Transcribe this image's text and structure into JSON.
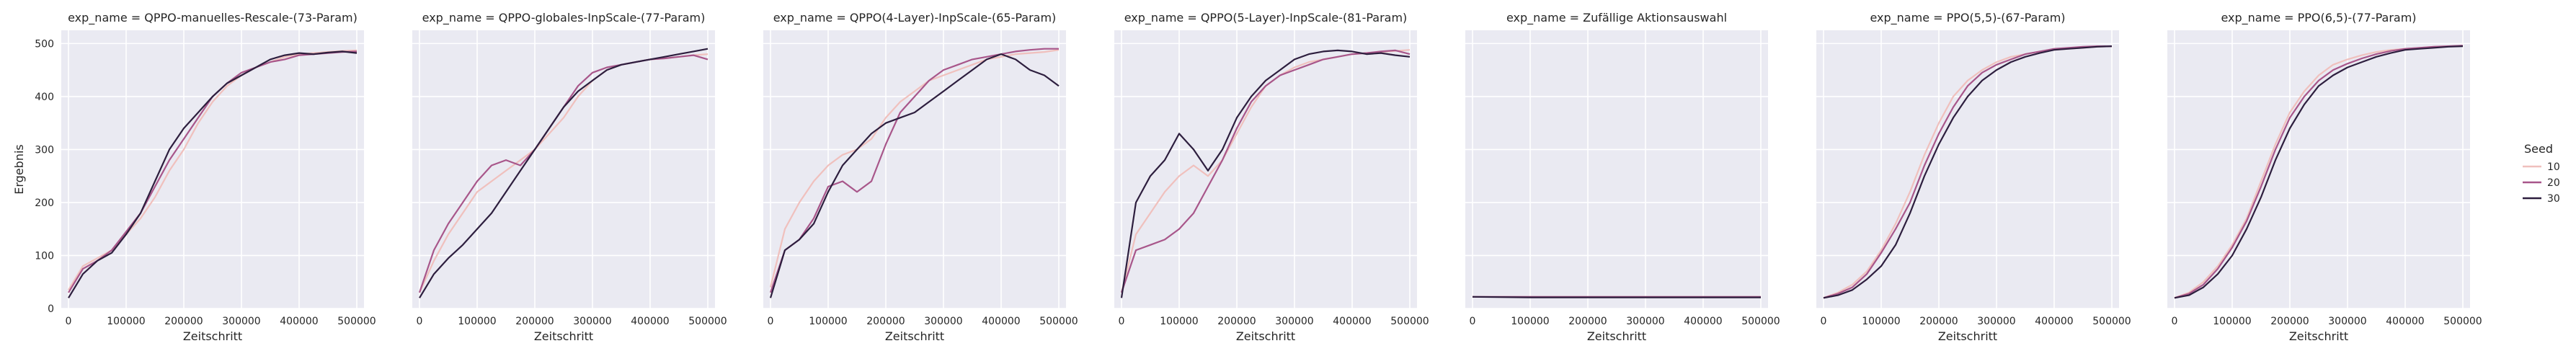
{
  "facet_prefix": "exp_name = ",
  "xlabel": "Zeitschritt",
  "ylabel": "Ergebnis",
  "legend": {
    "title": "Seed",
    "position": "right",
    "entries": [
      "10",
      "20",
      "30"
    ]
  },
  "colors": {
    "10": "#f0c0bd",
    "20": "#a8568a",
    "30": "#2d1e3e",
    "plot_bg": "#eaeaf2",
    "grid": "#ffffff"
  },
  "chart_data": [
    {
      "type": "line",
      "title": "exp_name = QPPO-manuelles-Rescale-(73-Param)",
      "xlim": [
        0,
        500000
      ],
      "ylim": [
        0,
        500
      ],
      "x_ticks": [
        0,
        100000,
        200000,
        300000,
        400000,
        500000
      ],
      "y_ticks": [
        0,
        100,
        200,
        300,
        400,
        500
      ],
      "x": [
        0,
        25000,
        50000,
        75000,
        100000,
        125000,
        150000,
        175000,
        200000,
        225000,
        250000,
        275000,
        300000,
        325000,
        350000,
        375000,
        400000,
        425000,
        450000,
        475000,
        500000
      ],
      "series": [
        {
          "name": "10",
          "values": [
            35,
            80,
            95,
            110,
            140,
            170,
            210,
            260,
            300,
            350,
            390,
            420,
            440,
            455,
            465,
            475,
            480,
            482,
            484,
            486,
            487
          ]
        },
        {
          "name": "20",
          "values": [
            30,
            75,
            90,
            110,
            145,
            180,
            230,
            280,
            320,
            360,
            400,
            425,
            445,
            455,
            465,
            470,
            478,
            480,
            482,
            484,
            485
          ]
        },
        {
          "name": "30",
          "values": [
            20,
            65,
            90,
            105,
            140,
            180,
            240,
            300,
            340,
            370,
            400,
            425,
            440,
            455,
            470,
            478,
            482,
            480,
            483,
            485,
            482
          ]
        }
      ]
    },
    {
      "type": "line",
      "title": "exp_name = QPPO-globales-InpScale-(77-Param)",
      "xlim": [
        0,
        500000
      ],
      "ylim": [
        0,
        500
      ],
      "x_ticks": [
        0,
        100000,
        200000,
        300000,
        400000,
        500000
      ],
      "y_ticks": [
        0,
        100,
        200,
        300,
        400,
        500
      ],
      "x": [
        0,
        25000,
        50000,
        75000,
        100000,
        125000,
        150000,
        175000,
        200000,
        225000,
        250000,
        275000,
        300000,
        325000,
        350000,
        375000,
        400000,
        425000,
        450000,
        475000,
        500000
      ],
      "series": [
        {
          "name": "10",
          "values": [
            30,
            90,
            140,
            180,
            220,
            240,
            260,
            280,
            300,
            330,
            360,
            400,
            430,
            450,
            460,
            465,
            470,
            472,
            475,
            478,
            480
          ]
        },
        {
          "name": "20",
          "values": [
            30,
            110,
            160,
            200,
            240,
            270,
            280,
            270,
            300,
            340,
            380,
            420,
            445,
            455,
            460,
            465,
            470,
            472,
            475,
            478,
            470
          ]
        },
        {
          "name": "30",
          "values": [
            20,
            65,
            95,
            120,
            150,
            180,
            220,
            260,
            300,
            340,
            380,
            410,
            430,
            450,
            460,
            465,
            470,
            475,
            480,
            485,
            490
          ]
        }
      ]
    },
    {
      "type": "line",
      "title": "exp_name = QPPO(4-Layer)-InpScale-(65-Param)",
      "xlim": [
        0,
        500000
      ],
      "ylim": [
        0,
        500
      ],
      "x_ticks": [
        0,
        100000,
        200000,
        300000,
        400000,
        500000
      ],
      "y_ticks": [
        0,
        100,
        200,
        300,
        400,
        500
      ],
      "x": [
        0,
        25000,
        50000,
        75000,
        100000,
        125000,
        150000,
        175000,
        200000,
        225000,
        250000,
        275000,
        300000,
        325000,
        350000,
        375000,
        400000,
        425000,
        450000,
        475000,
        500000
      ],
      "series": [
        {
          "name": "10",
          "values": [
            40,
            150,
            200,
            240,
            270,
            290,
            300,
            320,
            360,
            390,
            410,
            430,
            440,
            450,
            460,
            470,
            475,
            480,
            482,
            484,
            488
          ]
        },
        {
          "name": "20",
          "values": [
            30,
            110,
            130,
            170,
            230,
            240,
            220,
            240,
            310,
            370,
            400,
            430,
            450,
            460,
            470,
            475,
            480,
            485,
            488,
            490,
            490
          ]
        },
        {
          "name": "30",
          "values": [
            20,
            110,
            130,
            160,
            220,
            270,
            300,
            330,
            350,
            360,
            370,
            390,
            410,
            430,
            450,
            470,
            480,
            470,
            450,
            440,
            420
          ]
        }
      ]
    },
    {
      "type": "line",
      "title": "exp_name = QPPO(5-Layer)-InpScale-(81-Param)",
      "xlim": [
        0,
        500000
      ],
      "ylim": [
        0,
        500
      ],
      "x_ticks": [
        0,
        100000,
        200000,
        300000,
        400000,
        500000
      ],
      "y_ticks": [
        0,
        100,
        200,
        300,
        400,
        500
      ],
      "x": [
        0,
        25000,
        50000,
        75000,
        100000,
        125000,
        150000,
        175000,
        200000,
        225000,
        250000,
        275000,
        300000,
        325000,
        350000,
        375000,
        400000,
        425000,
        450000,
        475000,
        500000
      ],
      "series": [
        {
          "name": "10",
          "values": [
            30,
            140,
            180,
            220,
            250,
            270,
            250,
            280,
            330,
            380,
            420,
            440,
            455,
            465,
            470,
            475,
            480,
            482,
            484,
            486,
            488
          ]
        },
        {
          "name": "20",
          "values": [
            30,
            110,
            120,
            130,
            150,
            180,
            230,
            280,
            340,
            390,
            420,
            440,
            450,
            460,
            470,
            475,
            480,
            482,
            485,
            487,
            480
          ]
        },
        {
          "name": "30",
          "values": [
            20,
            200,
            250,
            280,
            330,
            300,
            260,
            300,
            360,
            400,
            430,
            450,
            470,
            480,
            485,
            487,
            485,
            480,
            482,
            478,
            475
          ]
        }
      ]
    },
    {
      "type": "line",
      "title": "exp_name = Zufällige Aktionsauswahl",
      "xlim": [
        0,
        500000
      ],
      "ylim": [
        0,
        500
      ],
      "x_ticks": [
        0,
        100000,
        200000,
        300000,
        400000,
        500000
      ],
      "y_ticks": [
        0,
        100,
        200,
        300,
        400,
        500
      ],
      "x": [
        0,
        100000,
        200000,
        300000,
        400000,
        500000
      ],
      "series": [
        {
          "name": "10",
          "values": [
            22,
            22,
            22,
            22,
            22,
            22
          ]
        },
        {
          "name": "20",
          "values": [
            22,
            22,
            22,
            22,
            22,
            22
          ]
        },
        {
          "name": "30",
          "values": [
            22,
            21,
            21,
            21,
            21,
            21
          ]
        }
      ]
    },
    {
      "type": "line",
      "title": "exp_name = PPO(5,5)-(67-Param)",
      "xlim": [
        0,
        500000
      ],
      "ylim": [
        0,
        500
      ],
      "x_ticks": [
        0,
        100000,
        200000,
        300000,
        400000,
        500000
      ],
      "y_ticks": [
        0,
        100,
        200,
        300,
        400,
        500
      ],
      "x": [
        0,
        25000,
        50000,
        75000,
        100000,
        125000,
        150000,
        175000,
        200000,
        225000,
        250000,
        275000,
        300000,
        325000,
        350000,
        375000,
        400000,
        425000,
        450000,
        475000,
        500000
      ],
      "series": [
        {
          "name": "10",
          "values": [
            20,
            30,
            45,
            70,
            110,
            160,
            220,
            290,
            350,
            400,
            430,
            450,
            465,
            475,
            480,
            485,
            488,
            490,
            492,
            494,
            495
          ]
        },
        {
          "name": "20",
          "values": [
            20,
            28,
            40,
            65,
            105,
            150,
            200,
            270,
            330,
            380,
            420,
            445,
            460,
            470,
            480,
            485,
            490,
            492,
            494,
            495,
            495
          ]
        },
        {
          "name": "30",
          "values": [
            20,
            25,
            35,
            55,
            80,
            120,
            180,
            250,
            310,
            360,
            400,
            430,
            450,
            465,
            475,
            482,
            488,
            490,
            492,
            494,
            495
          ]
        }
      ]
    },
    {
      "type": "line",
      "title": "exp_name = PPO(6,5)-(77-Param)",
      "xlim": [
        0,
        500000
      ],
      "ylim": [
        0,
        500
      ],
      "x_ticks": [
        0,
        100000,
        200000,
        300000,
        400000,
        500000
      ],
      "y_ticks": [
        0,
        100,
        200,
        300,
        400,
        500
      ],
      "x": [
        0,
        25000,
        50000,
        75000,
        100000,
        125000,
        150000,
        175000,
        200000,
        225000,
        250000,
        275000,
        300000,
        325000,
        350000,
        375000,
        400000,
        425000,
        450000,
        475000,
        500000
      ],
      "series": [
        {
          "name": "10",
          "values": [
            20,
            30,
            50,
            80,
            120,
            170,
            240,
            310,
            370,
            410,
            440,
            460,
            470,
            478,
            484,
            488,
            490,
            492,
            494,
            495,
            496
          ]
        },
        {
          "name": "20",
          "values": [
            20,
            28,
            45,
            75,
            115,
            165,
            230,
            300,
            360,
            400,
            430,
            450,
            462,
            472,
            480,
            486,
            490,
            492,
            494,
            495,
            496
          ]
        },
        {
          "name": "30",
          "values": [
            20,
            25,
            40,
            65,
            100,
            150,
            210,
            280,
            340,
            385,
            420,
            440,
            455,
            465,
            475,
            482,
            488,
            490,
            492,
            494,
            495
          ]
        }
      ]
    }
  ]
}
